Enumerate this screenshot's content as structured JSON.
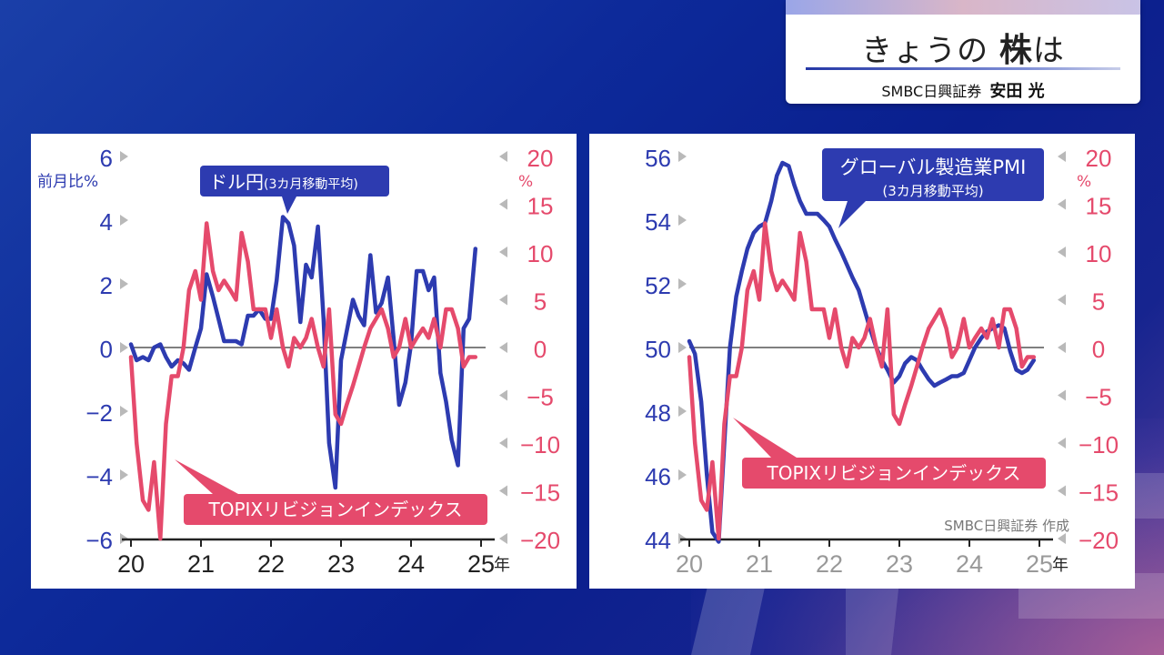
{
  "header": {
    "title_main": "きょうの",
    "title_em": "株",
    "title_tail": "は",
    "presenter_company": "SMBC日興証券",
    "presenter_name": "安田 光"
  },
  "colors": {
    "blue_series": "#2d3bb0",
    "red_series": "#e54a6c",
    "left_axis": "#2d3bb0",
    "right_axis": "#e54a6c"
  },
  "chart_data": [
    {
      "type": "line",
      "x_ticks": [
        "20",
        "21",
        "22",
        "23",
        "24",
        "25"
      ],
      "x_unit": "年",
      "y_left": {
        "label": "前月比%",
        "ticks": [
          6,
          4,
          2,
          0,
          -2,
          -4,
          -6
        ],
        "range": [
          -6,
          6
        ]
      },
      "y_right": {
        "label": "%",
        "ticks": [
          20,
          15,
          10,
          5,
          0,
          -5,
          -10,
          -15,
          -20
        ],
        "range": [
          -20,
          20
        ]
      },
      "series": [
        {
          "name": "ドル円",
          "name_sub": "(3カ月移動平均)",
          "axis": "left",
          "x": [
            2020.0,
            2020.08,
            2020.17,
            2020.25,
            2020.33,
            2020.42,
            2020.5,
            2020.58,
            2020.67,
            2020.75,
            2020.83,
            2020.92,
            2021.0,
            2021.08,
            2021.17,
            2021.25,
            2021.33,
            2021.42,
            2021.5,
            2021.58,
            2021.67,
            2021.75,
            2021.83,
            2021.92,
            2022.0,
            2022.08,
            2022.17,
            2022.25,
            2022.33,
            2022.42,
            2022.5,
            2022.58,
            2022.67,
            2022.75,
            2022.83,
            2022.92,
            2023.0,
            2023.08,
            2023.17,
            2023.25,
            2023.33,
            2023.42,
            2023.5,
            2023.58,
            2023.67,
            2023.75,
            2023.83,
            2023.92,
            2024.0,
            2024.08,
            2024.17,
            2024.25,
            2024.33,
            2024.42,
            2024.5,
            2024.58,
            2024.67,
            2024.75,
            2024.83,
            2024.92
          ],
          "y": [
            0.1,
            -0.4,
            -0.3,
            -0.4,
            0.0,
            0.1,
            -0.3,
            -0.6,
            -0.4,
            -0.5,
            -0.7,
            0.0,
            0.6,
            2.3,
            1.6,
            0.9,
            0.2,
            0.2,
            0.2,
            0.1,
            1.0,
            1.0,
            1.2,
            0.9,
            0.9,
            2.1,
            4.1,
            3.9,
            3.2,
            0.8,
            2.6,
            2.2,
            3.8,
            0.9,
            -3.0,
            -4.4,
            -0.4,
            0.5,
            1.5,
            1.0,
            0.7,
            2.9,
            1.1,
            1.4,
            2.2,
            0.3,
            -1.8,
            -1.1,
            0.1,
            2.4,
            2.4,
            1.8,
            2.2,
            -0.8,
            -1.7,
            -2.9,
            -3.7,
            0.6,
            0.9,
            3.1
          ]
        },
        {
          "name": "TOPIXリビジョンインデックス",
          "axis": "right",
          "x": [
            2020.0,
            2020.08,
            2020.17,
            2020.25,
            2020.33,
            2020.42,
            2020.5,
            2020.58,
            2020.67,
            2020.75,
            2020.83,
            2020.92,
            2021.0,
            2021.08,
            2021.17,
            2021.25,
            2021.33,
            2021.42,
            2021.5,
            2021.58,
            2021.67,
            2021.75,
            2021.83,
            2021.92,
            2022.0,
            2022.08,
            2022.17,
            2022.25,
            2022.33,
            2022.42,
            2022.5,
            2022.58,
            2022.67,
            2022.75,
            2022.83,
            2022.92,
            2023.0,
            2023.08,
            2023.17,
            2023.25,
            2023.33,
            2023.42,
            2023.5,
            2023.58,
            2023.67,
            2023.75,
            2023.83,
            2023.92,
            2024.0,
            2024.08,
            2024.17,
            2024.25,
            2024.33,
            2024.42,
            2024.5,
            2024.58,
            2024.67,
            2024.75,
            2024.83,
            2024.92
          ],
          "y": [
            -1,
            -10,
            -16,
            -17,
            -12,
            -20,
            -8,
            -3,
            -3,
            0,
            6,
            8,
            5,
            13,
            8,
            6,
            7,
            6,
            5,
            12,
            9,
            4,
            4,
            4,
            1,
            4,
            0,
            -2,
            1,
            0,
            1,
            3,
            0,
            -2,
            4,
            -7,
            -8,
            -6,
            -4,
            -2,
            0,
            2,
            3,
            4,
            2,
            -1,
            0,
            3,
            0,
            1,
            2,
            1,
            3,
            0,
            4,
            4,
            2,
            -2,
            -1,
            -1
          ]
        }
      ],
      "annotations": [
        "ドル円",
        "(3カ月移動平均)",
        "TOPIXリビジョンインデックス"
      ]
    },
    {
      "type": "line",
      "x_ticks": [
        "20",
        "21",
        "22",
        "23",
        "24",
        "25"
      ],
      "x_unit": "年",
      "y_left": {
        "ticks": [
          56,
          54,
          52,
          50,
          48,
          46,
          44
        ],
        "range": [
          44,
          56
        ]
      },
      "y_right": {
        "label": "%",
        "ticks": [
          20,
          15,
          10,
          5,
          0,
          -5,
          -10,
          -15,
          -20
        ],
        "range": [
          -20,
          20
        ]
      },
      "series": [
        {
          "name": "グローバル製造業PMI",
          "name_sub": "(3カ月移動平均)",
          "axis": "left",
          "x": [
            2020.0,
            2020.08,
            2020.17,
            2020.25,
            2020.33,
            2020.42,
            2020.5,
            2020.58,
            2020.67,
            2020.75,
            2020.83,
            2020.92,
            2021.0,
            2021.08,
            2021.17,
            2021.25,
            2021.33,
            2021.42,
            2021.5,
            2021.58,
            2021.67,
            2021.75,
            2021.83,
            2021.92,
            2022.0,
            2022.08,
            2022.17,
            2022.25,
            2022.33,
            2022.42,
            2022.5,
            2022.58,
            2022.67,
            2022.75,
            2022.83,
            2022.92,
            2023.0,
            2023.08,
            2023.17,
            2023.25,
            2023.33,
            2023.42,
            2023.5,
            2023.58,
            2023.67,
            2023.75,
            2023.83,
            2023.92,
            2024.0,
            2024.08,
            2024.17,
            2024.25,
            2024.33,
            2024.42,
            2024.5,
            2024.58,
            2024.67,
            2024.75,
            2024.83,
            2024.92
          ],
          "y": [
            50.2,
            49.8,
            48.3,
            46.0,
            44.2,
            43.9,
            47.0,
            50.0,
            51.6,
            52.4,
            53.1,
            53.6,
            53.8,
            53.9,
            54.6,
            55.4,
            55.8,
            55.7,
            55.1,
            54.6,
            54.2,
            54.2,
            54.2,
            54.0,
            53.8,
            53.4,
            53.0,
            52.6,
            52.2,
            51.8,
            51.2,
            50.6,
            50.0,
            49.6,
            49.3,
            48.9,
            49.1,
            49.5,
            49.7,
            49.6,
            49.3,
            49.0,
            48.8,
            48.9,
            49.0,
            49.1,
            49.1,
            49.2,
            49.6,
            50.0,
            50.3,
            50.5,
            50.6,
            50.7,
            50.6,
            49.9,
            49.3,
            49.2,
            49.3,
            49.6
          ]
        },
        {
          "name": "TOPIXリビジョンインデックス",
          "axis": "right",
          "x": [
            2020.0,
            2020.08,
            2020.17,
            2020.25,
            2020.33,
            2020.42,
            2020.5,
            2020.58,
            2020.67,
            2020.75,
            2020.83,
            2020.92,
            2021.0,
            2021.08,
            2021.17,
            2021.25,
            2021.33,
            2021.42,
            2021.5,
            2021.58,
            2021.67,
            2021.75,
            2021.83,
            2021.92,
            2022.0,
            2022.08,
            2022.17,
            2022.25,
            2022.33,
            2022.42,
            2022.5,
            2022.58,
            2022.67,
            2022.75,
            2022.83,
            2022.92,
            2023.0,
            2023.08,
            2023.17,
            2023.25,
            2023.33,
            2023.42,
            2023.5,
            2023.58,
            2023.67,
            2023.75,
            2023.83,
            2023.92,
            2024.0,
            2024.08,
            2024.17,
            2024.25,
            2024.33,
            2024.42,
            2024.5,
            2024.58,
            2024.67,
            2024.75,
            2024.83,
            2024.92
          ],
          "y": [
            -1,
            -10,
            -16,
            -17,
            -12,
            -20,
            -8,
            -3,
            -3,
            0,
            6,
            8,
            5,
            13,
            8,
            6,
            7,
            6,
            5,
            12,
            9,
            4,
            4,
            4,
            1,
            4,
            0,
            -2,
            1,
            0,
            1,
            3,
            0,
            -2,
            4,
            -7,
            -8,
            -6,
            -4,
            -2,
            0,
            2,
            3,
            4,
            2,
            -1,
            0,
            3,
            0,
            1,
            2,
            1,
            3,
            0,
            4,
            4,
            2,
            -2,
            -1,
            -1
          ]
        }
      ],
      "annotations": [
        "グローバル製造業PMI",
        "(3カ月移動平均)",
        "TOPIXリビジョンインデックス"
      ],
      "source": "SMBC日興証券 作成"
    }
  ]
}
